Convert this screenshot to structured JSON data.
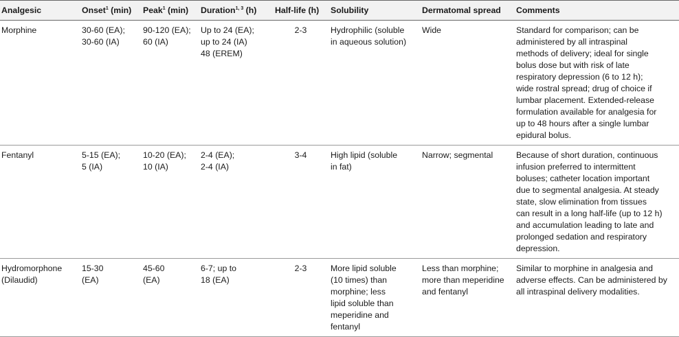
{
  "headers": {
    "analgesic": "Analgesic",
    "onset": "Onset",
    "onset_sup": "1",
    "onset_unit": " (min)",
    "peak": "Peak",
    "peak_sup": "1",
    "peak_unit": " (min)",
    "duration": "Duration",
    "duration_sup": "1, 3",
    "duration_unit": " (h)",
    "halflife": "Half-life (h)",
    "solubility": "Solubility",
    "spread": "Dermatomal spread",
    "comments": "Comments"
  },
  "rows": [
    {
      "analgesic": [
        "Morphine"
      ],
      "onset": [
        "30-60 (EA);",
        "30-60 (IA)"
      ],
      "peak": [
        "90-120 (EA);",
        "60 (IA)"
      ],
      "duration": [
        "Up to 24 (EA);",
        "up to 24 (IA)",
        "48 (EREM)"
      ],
      "halflife": "2-3",
      "solubility": [
        "Hydrophilic (soluble",
        "in aqueous solution)"
      ],
      "spread": [
        "Wide"
      ],
      "comments": [
        "Standard for comparison; can be",
        "administered by all intraspinal",
        "methods of delivery; ideal for single",
        "bolus dose but with risk of late",
        "respiratory depression (6 to 12 h);",
        "wide rostral spread; drug of choice if",
        "lumbar placement. Extended-release",
        "formulation available for analgesia for",
        "up to 48 hours after a single lumbar",
        "epidural bolus."
      ]
    },
    {
      "analgesic": [
        "Fentanyl"
      ],
      "onset": [
        "5-15 (EA);",
        "5 (IA)"
      ],
      "peak": [
        "10-20 (EA);",
        "10 (IA)"
      ],
      "duration": [
        "2-4 (EA);",
        "2-4 (IA)"
      ],
      "halflife": "3-4",
      "solubility": [
        "High lipid (soluble",
        "in fat)"
      ],
      "spread": [
        "Narrow; segmental"
      ],
      "comments": [
        "Because of short duration, continuous",
        "infusion preferred to intermittent",
        "boluses; catheter location important",
        "due to segmental analgesia. At steady",
        "state, slow elimination from tissues",
        "can result in a long half-life (up to 12 h)",
        "and accumulation leading to late and",
        "prolonged sedation and respiratory",
        "depression."
      ]
    },
    {
      "analgesic": [
        "Hydromorphone",
        "(Dilaudid)"
      ],
      "onset": [
        "15-30",
        "(EA)"
      ],
      "peak": [
        "45-60",
        "(EA)"
      ],
      "duration": [
        "6-7; up to",
        "18 (EA)"
      ],
      "halflife": "2-3",
      "solubility": [
        "More lipid soluble",
        "(10 times) than",
        "morphine; less",
        "lipid soluble than",
        "meperidine and",
        "fentanyl"
      ],
      "spread": [
        "Less than morphine;",
        "more than meperidine",
        "and fentanyl"
      ],
      "comments": [
        "Similar to morphine in analgesia and",
        "adverse effects. Can be administered by",
        "all intraspinal delivery modalities."
      ]
    }
  ]
}
